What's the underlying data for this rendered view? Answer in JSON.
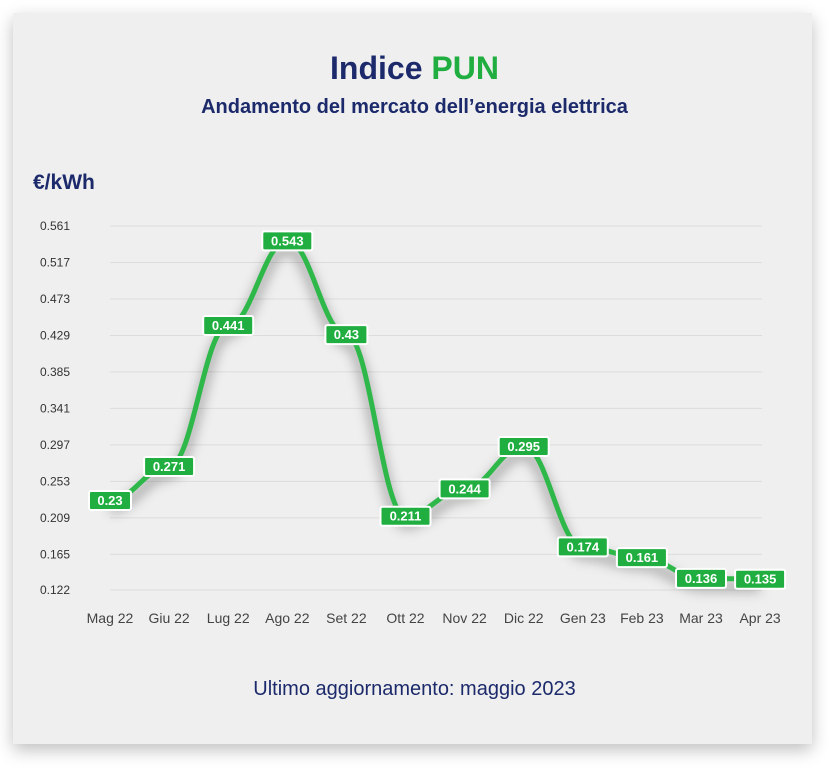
{
  "header": {
    "title_main": "Indice",
    "title_accent": "PUN",
    "subtitle": "Andamento del mercato dell’energia elettrica"
  },
  "colors": {
    "title": "#1c2a6b",
    "accent": "#1fae3f",
    "line": "#2eb84a",
    "background": "#efefef"
  },
  "chart_data": {
    "type": "line",
    "ylabel": "€/kWh",
    "categories": [
      "Mag 22",
      "Giu 22",
      "Lug 22",
      "Ago 22",
      "Set 22",
      "Ott 22",
      "Nov 22",
      "Dic 22",
      "Gen 23",
      "Feb 23",
      "Mar 23",
      "Apr 23"
    ],
    "values": [
      0.23,
      0.271,
      0.441,
      0.543,
      0.43,
      0.211,
      0.244,
      0.295,
      0.174,
      0.161,
      0.136,
      0.135
    ],
    "labels": [
      "0.23",
      "0.271",
      "0.441",
      "0.543",
      "0.43",
      "0.211",
      "0.244",
      "0.295",
      "0.174",
      "0.161",
      "0.136",
      "0.135"
    ],
    "yticks": [
      "0.122",
      "0.165",
      "0.209",
      "0.253",
      "0.297",
      "0.341",
      "0.385",
      "0.429",
      "0.473",
      "0.517",
      "0.561"
    ],
    "ylim": [
      0.122,
      0.561
    ],
    "grid": true,
    "smooth": true
  },
  "footer": {
    "text": "Ultimo aggiornamento: maggio 2023"
  }
}
